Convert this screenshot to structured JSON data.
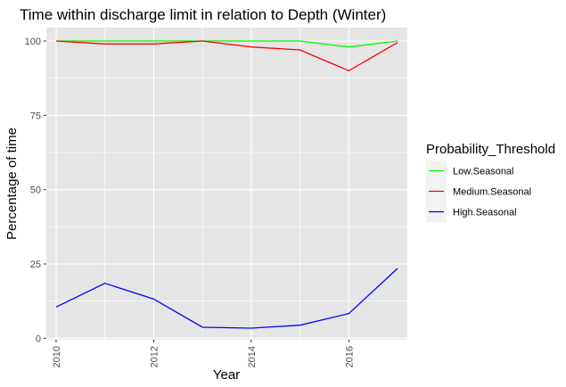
{
  "chart_data": {
    "type": "line",
    "title": "Time within discharge limit in relation to Depth (Winter)",
    "xlabel": "Year",
    "ylabel": "Percentage of time",
    "x": [
      2010,
      2011,
      2012,
      2013,
      2014,
      2015,
      2016,
      2017
    ],
    "xlim": [
      2009.8,
      2017.2
    ],
    "ylim": [
      -0.5,
      104.5
    ],
    "xticks": [
      2010,
      2012,
      2014,
      2016
    ],
    "yticks": [
      0,
      25,
      50,
      75,
      100
    ],
    "grid": true,
    "legend": {
      "title": "Probability_Threshold",
      "position": "right"
    },
    "series": [
      {
        "name": "Low.Seasonal",
        "color": "#00ff00",
        "values": [
          100,
          100,
          100,
          100,
          100,
          100,
          98,
          100
        ]
      },
      {
        "name": "Medium.Seasonal",
        "color": "#ff0000",
        "values": [
          100,
          99,
          99,
          100,
          98,
          97,
          90,
          99.5
        ]
      },
      {
        "name": "High.Seasonal",
        "color": "#0000ff",
        "values": [
          10.5,
          18.5,
          13.2,
          3.7,
          3.4,
          4.4,
          8.3,
          23.5
        ]
      }
    ],
    "colors": {
      "panel": "#e5e5e5",
      "grid": "#ffffff"
    }
  }
}
